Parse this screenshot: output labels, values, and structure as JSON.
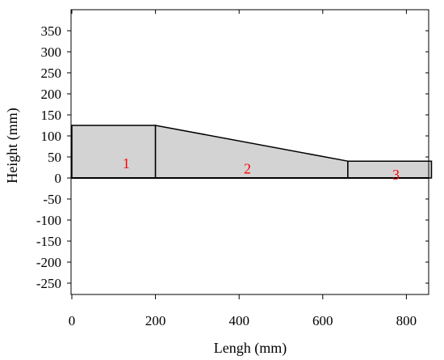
{
  "chart_data": {
    "type": "area",
    "xlabel": "Lengh (mm)",
    "ylabel": "Height (mm)",
    "xlim": [
      0,
      860
    ],
    "ylim": [
      -280,
      400
    ],
    "x_ticks": [
      "0",
      "200",
      "400",
      "600",
      "800"
    ],
    "x_tick_values": [
      0,
      200,
      400,
      600,
      800
    ],
    "y_ticks": [
      "350",
      "300",
      "250",
      "200",
      "150",
      "100",
      "50",
      "0",
      "-50",
      "-100",
      "-150",
      "-200",
      "-250"
    ],
    "y_tick_values": [
      350,
      300,
      250,
      200,
      150,
      100,
      50,
      0,
      -50,
      -100,
      -150,
      -200,
      -250
    ],
    "grid": false,
    "fill_color": "#d3d3d3",
    "outline_color": "#000000",
    "label_color": "#ff0000",
    "regions": [
      {
        "label": "1",
        "points": [
          [
            0,
            0
          ],
          [
            0,
            125
          ],
          [
            200,
            125
          ],
          [
            200,
            0
          ]
        ],
        "label_at": [
          130,
          35
        ]
      },
      {
        "label": "2",
        "points": [
          [
            200,
            0
          ],
          [
            200,
            125
          ],
          [
            660,
            40
          ],
          [
            660,
            0
          ]
        ],
        "label_at": [
          420,
          22
        ]
      },
      {
        "label": "3",
        "points": [
          [
            660,
            0
          ],
          [
            660,
            40
          ],
          [
            860,
            40
          ],
          [
            860,
            0
          ]
        ],
        "label_at": [
          775,
          8
        ]
      }
    ]
  }
}
